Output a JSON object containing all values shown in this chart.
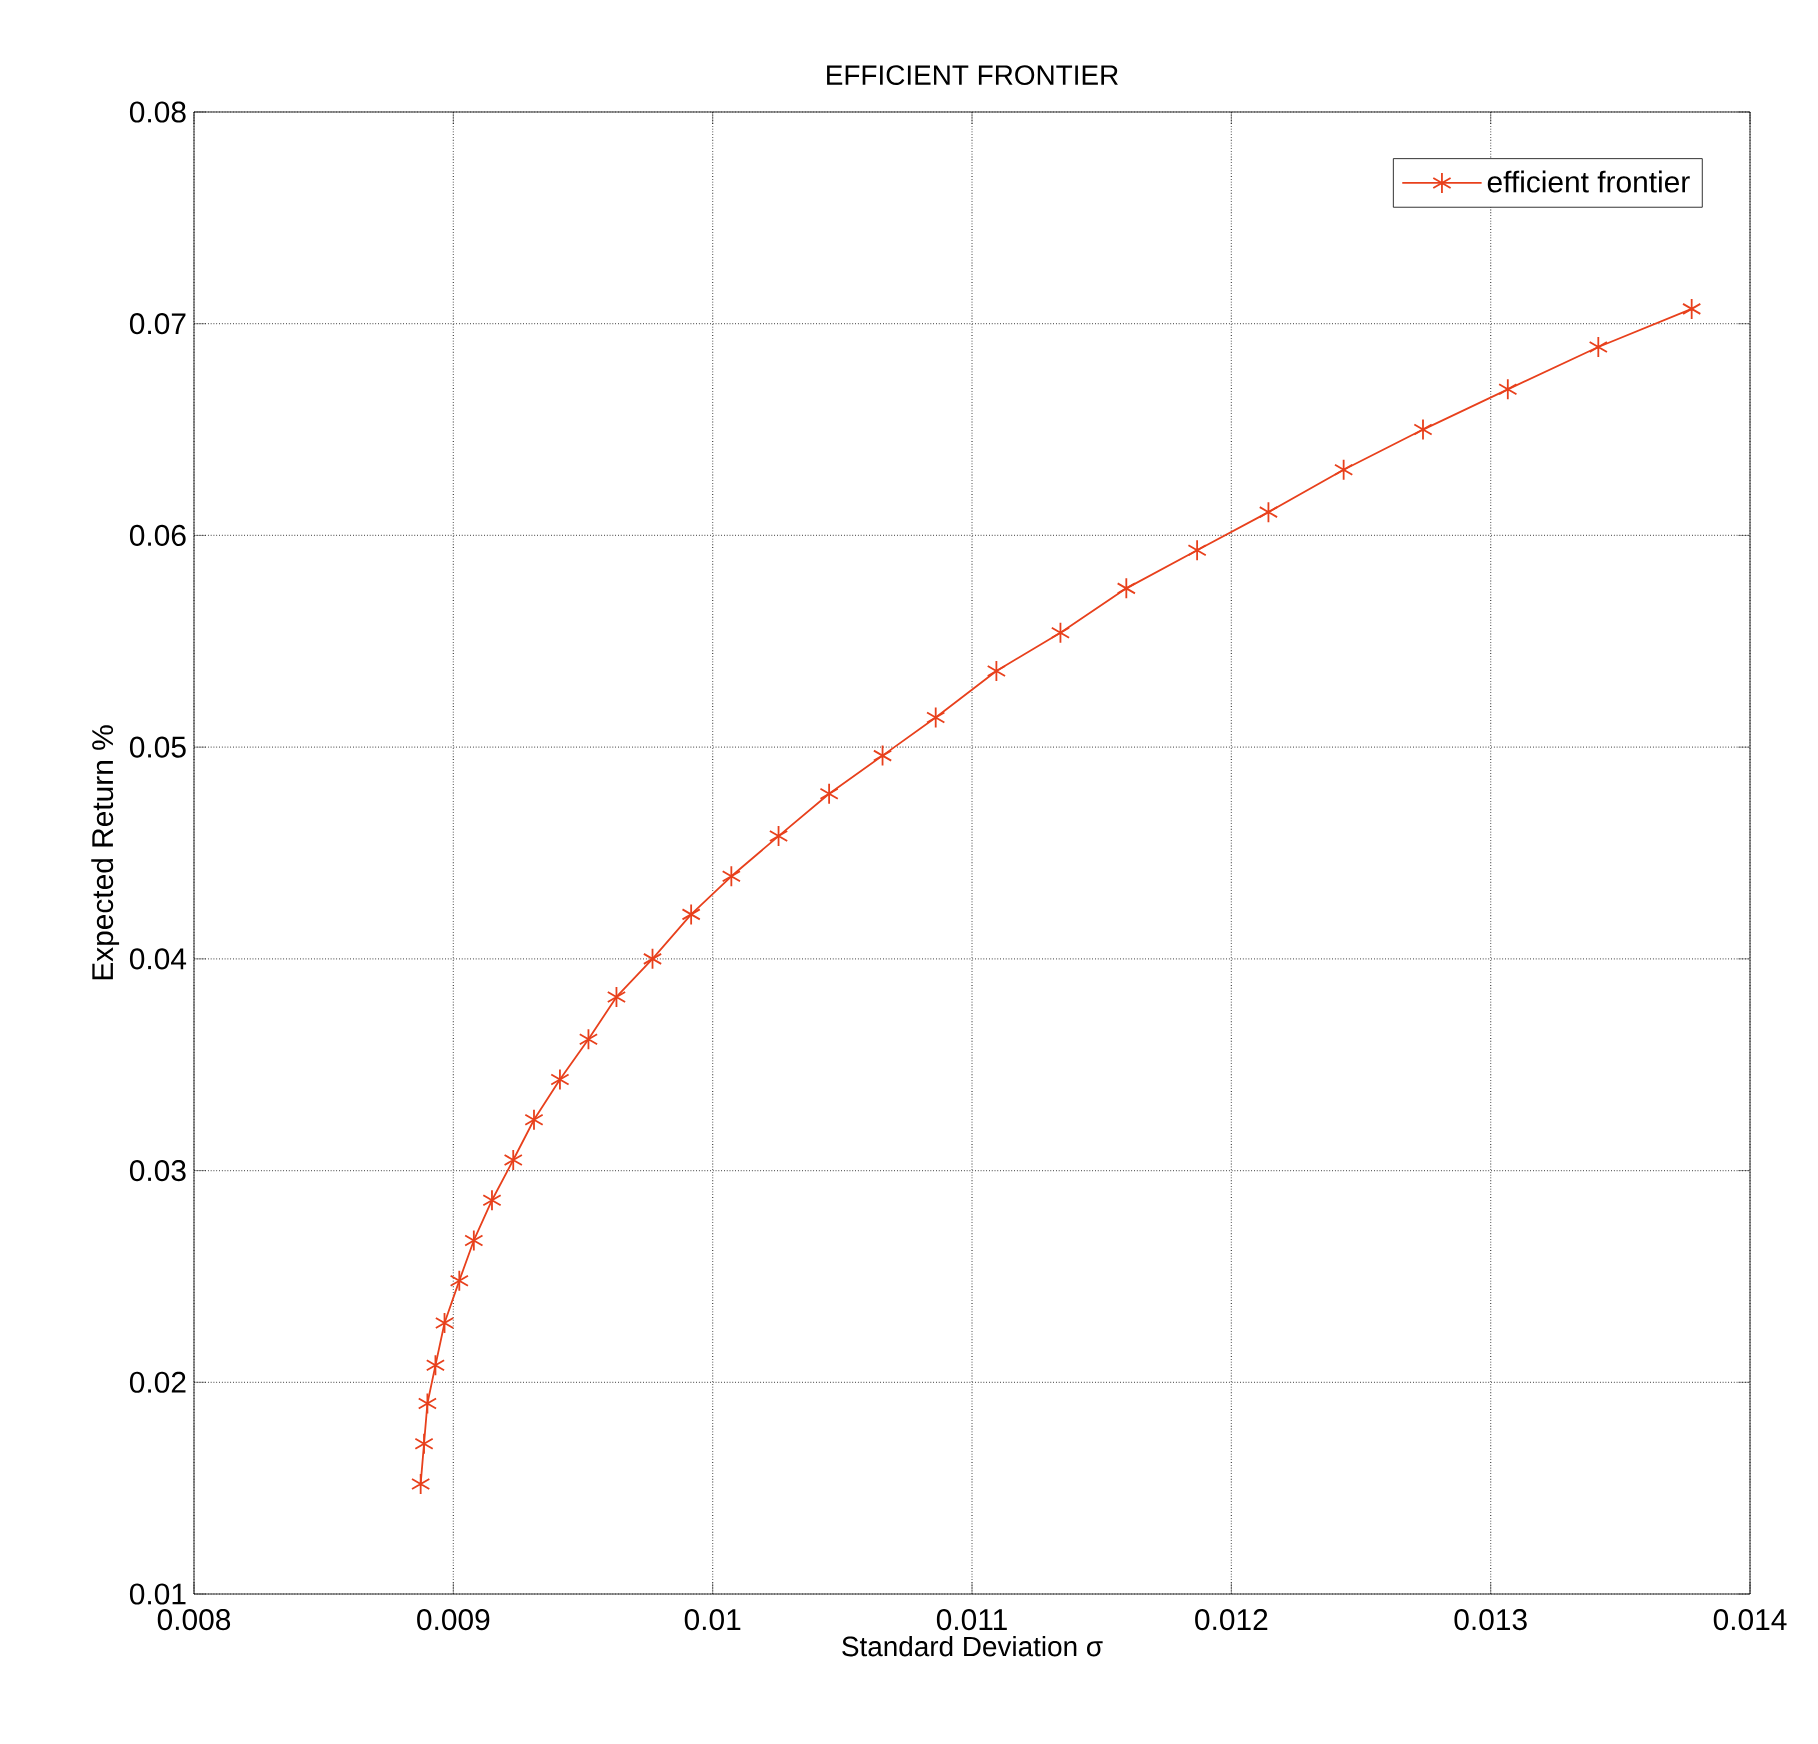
{
  "chart_data": {
    "type": "line",
    "title": "EFFICIENT FRONTIER",
    "xlabel": "Standard Deviation σ",
    "ylabel": "Expected Return %",
    "x": [
      0.008874,
      0.008887,
      0.0089,
      0.008931,
      0.008966,
      0.009023,
      0.009079,
      0.009149,
      0.009231,
      0.009311,
      0.009411,
      0.009521,
      0.009629,
      0.009768,
      0.009917,
      0.010072,
      0.010254,
      0.010449,
      0.010655,
      0.01086,
      0.011094,
      0.011341,
      0.011595,
      0.011868,
      0.012143,
      0.012433,
      0.012739,
      0.013066,
      0.013415,
      0.013775
    ],
    "series": [
      {
        "name": "efficient frontier",
        "color": "#e8401c",
        "values": [
          0.0152,
          0.0171,
          0.019,
          0.0208,
          0.0228,
          0.0248,
          0.0267,
          0.0286,
          0.0305,
          0.0324,
          0.0343,
          0.0362,
          0.0382,
          0.04,
          0.0421,
          0.0439,
          0.0458,
          0.0478,
          0.0496,
          0.0514,
          0.0536,
          0.0554,
          0.0575,
          0.0593,
          0.0611,
          0.0631,
          0.065,
          0.0669,
          0.0689,
          0.0707
        ]
      }
    ],
    "xlim": [
      0.008,
      0.014
    ],
    "ylim": [
      0.01,
      0.08
    ],
    "xticks": [
      0.008,
      0.009,
      0.01,
      0.011,
      0.012,
      0.013,
      0.014
    ],
    "yticks": [
      0.01,
      0.02,
      0.03,
      0.04,
      0.05,
      0.06,
      0.07,
      0.08
    ],
    "grid": true,
    "legend": "top right",
    "marker": "cross",
    "line_style": "solid"
  }
}
